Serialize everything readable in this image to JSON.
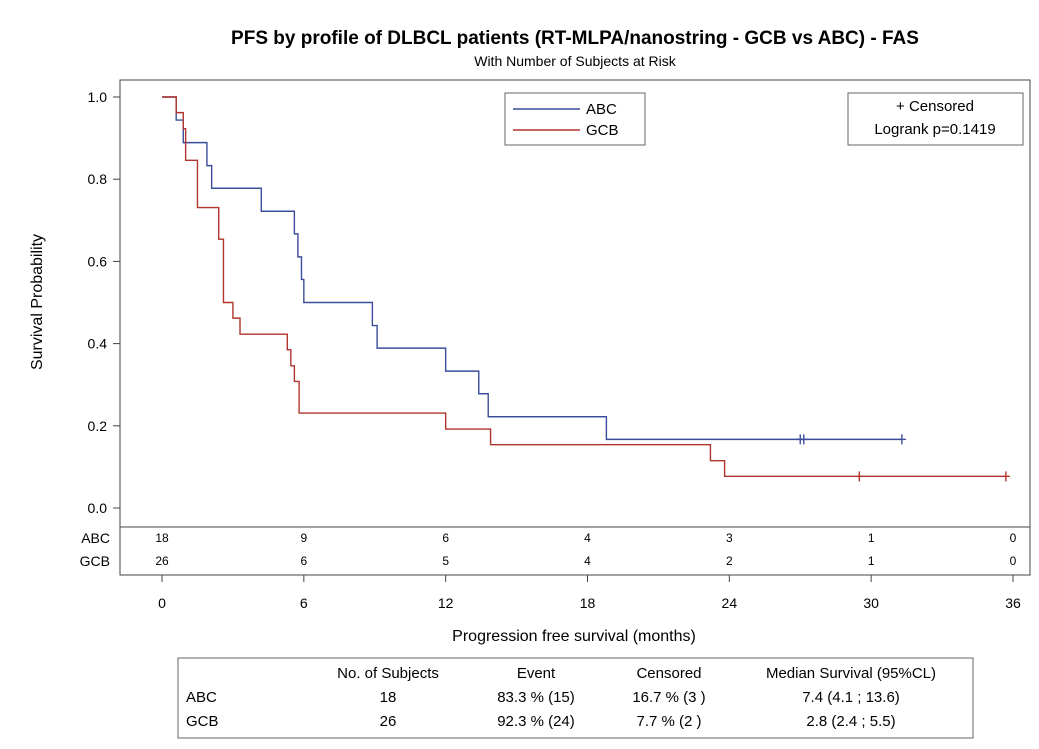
{
  "chart_data": {
    "type": "line",
    "title": "PFS by profile of DLBCL patients (RT-MLPA/nanostring - GCB vs ABC) - FAS",
    "subtitle": "With Number of Subjects at Risk",
    "xlabel": "Progression free survival (months)",
    "ylabel": "Survival Probability",
    "xlim": [
      0,
      36
    ],
    "ylim": [
      0,
      1
    ],
    "x_ticks": [
      "0",
      "6",
      "12",
      "18",
      "24",
      "30",
      "36"
    ],
    "y_ticks": [
      "0.0",
      "0.2",
      "0.4",
      "0.6",
      "0.8",
      "1.0"
    ],
    "x_tick_values": [
      0,
      6,
      12,
      18,
      24,
      30,
      36
    ],
    "y_tick_values": [
      0,
      0.2,
      0.4,
      0.6,
      0.8,
      1.0
    ],
    "grid": false,
    "legend_position": "top-center",
    "series": [
      {
        "name": "ABC",
        "color": "#3b4d9a",
        "steps": [
          [
            0,
            1.0
          ],
          [
            0.6,
            0.944
          ],
          [
            0.9,
            0.889
          ],
          [
            1.9,
            0.833
          ],
          [
            2.1,
            0.778
          ],
          [
            4.2,
            0.722
          ],
          [
            5.6,
            0.667
          ],
          [
            5.75,
            0.611
          ],
          [
            5.9,
            0.556
          ],
          [
            6.0,
            0.5
          ],
          [
            8.9,
            0.444
          ],
          [
            9.1,
            0.389
          ],
          [
            12.0,
            0.333
          ],
          [
            13.4,
            0.278
          ],
          [
            13.8,
            0.222
          ],
          [
            18.8,
            0.167
          ]
        ],
        "end_x": 31.3,
        "censored": [
          [
            27.0,
            0.167
          ],
          [
            27.15,
            0.167
          ],
          [
            31.3,
            0.167
          ]
        ]
      },
      {
        "name": "GCB",
        "color": "#b0352c",
        "steps": [
          [
            0,
            1.0
          ],
          [
            0.6,
            0.962
          ],
          [
            0.9,
            0.923
          ],
          [
            1.0,
            0.846
          ],
          [
            1.5,
            0.731
          ],
          [
            2.4,
            0.654
          ],
          [
            2.6,
            0.5
          ],
          [
            3.0,
            0.462
          ],
          [
            3.3,
            0.423
          ],
          [
            5.3,
            0.385
          ],
          [
            5.45,
            0.346
          ],
          [
            5.6,
            0.308
          ],
          [
            5.8,
            0.231
          ],
          [
            12.0,
            0.192
          ],
          [
            13.9,
            0.154
          ],
          [
            23.2,
            0.115
          ],
          [
            23.8,
            0.077
          ]
        ],
        "end_x": 35.7,
        "censored": [
          [
            29.5,
            0.077
          ],
          [
            35.7,
            0.077
          ]
        ]
      }
    ],
    "risk_table": {
      "times": [
        0,
        6,
        12,
        18,
        24,
        30,
        36
      ],
      "rows": [
        {
          "label": "ABC",
          "counts": [
            "18",
            "9",
            "6",
            "4",
            "3",
            "1",
            "0"
          ]
        },
        {
          "label": "GCB",
          "counts": [
            "26",
            "6",
            "5",
            "4",
            "2",
            "1",
            "0"
          ]
        }
      ]
    },
    "inset": {
      "line1": "+ Censored",
      "line2": "Logrank p=0.1419"
    }
  },
  "summary_table": {
    "headers": [
      "No. of Subjects",
      "Event",
      "Censored",
      "Median Survival (95%CL)"
    ],
    "rows": [
      {
        "label": "ABC",
        "cells": [
          "18",
          "83.3 % (15)",
          "16.7 % (3 )",
          "7.4 (4.1 ; 13.6)"
        ]
      },
      {
        "label": "GCB",
        "cells": [
          "26",
          "92.3 % (24)",
          "7.7 % (2 )",
          "2.8 (2.4 ; 5.5)"
        ]
      }
    ]
  }
}
